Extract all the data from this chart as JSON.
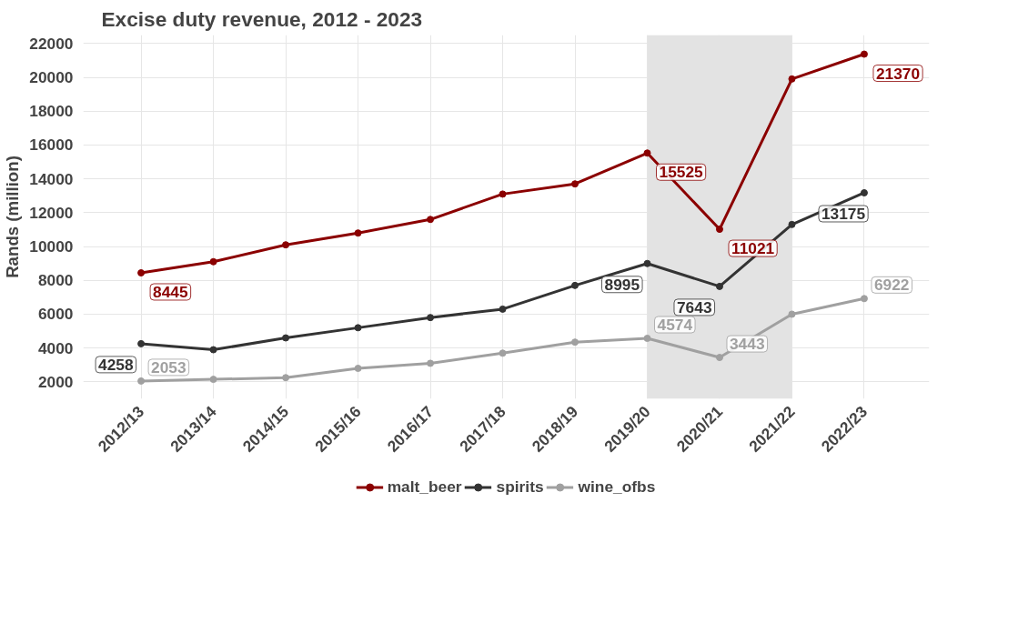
{
  "chart_data": {
    "type": "line",
    "title": "Excise duty revenue, 2012 - 2023",
    "ylabel": "Rands (million)",
    "categories": [
      "2012/13",
      "2013/14",
      "2014/15",
      "2015/16",
      "2016/17",
      "2017/18",
      "2018/19",
      "2019/20",
      "2020/21",
      "2021/22",
      "2022/23"
    ],
    "series": [
      {
        "name": "malt_beer",
        "color": "#8b0000",
        "values": [
          8445,
          9100,
          10100,
          10800,
          11600,
          13100,
          13700,
          15525,
          11021,
          19900,
          21370
        ],
        "value_labels": [
          "8445",
          null,
          null,
          null,
          null,
          null,
          null,
          "15525",
          "11021",
          null,
          "21370"
        ]
      },
      {
        "name": "spirits",
        "color": "#333333",
        "values": [
          4258,
          3900,
          4600,
          5200,
          5800,
          6300,
          7700,
          8995,
          7643,
          11300,
          13175
        ],
        "value_labels": [
          "4258",
          null,
          null,
          null,
          null,
          null,
          null,
          "8995",
          "7643",
          null,
          "13175"
        ]
      },
      {
        "name": "wine_ofbs",
        "color": "#a0a0a0",
        "values": [
          2053,
          2150,
          2250,
          2800,
          3100,
          3700,
          4350,
          4574,
          3443,
          6000,
          6922
        ],
        "value_labels": [
          "2053",
          null,
          null,
          null,
          null,
          null,
          null,
          "4574",
          "3443",
          null,
          "6922"
        ]
      }
    ],
    "bands": [
      {
        "axis": "x",
        "from": "2019/20",
        "to": "2021/22",
        "color": "#e3e3e3"
      }
    ],
    "ylim": [
      1000,
      22500
    ],
    "yticks": [
      2000,
      4000,
      6000,
      8000,
      10000,
      12000,
      14000,
      16000,
      18000,
      20000,
      22000
    ],
    "grid": true,
    "legend": "bottom",
    "marker": "circle",
    "line_style": "solid"
  }
}
